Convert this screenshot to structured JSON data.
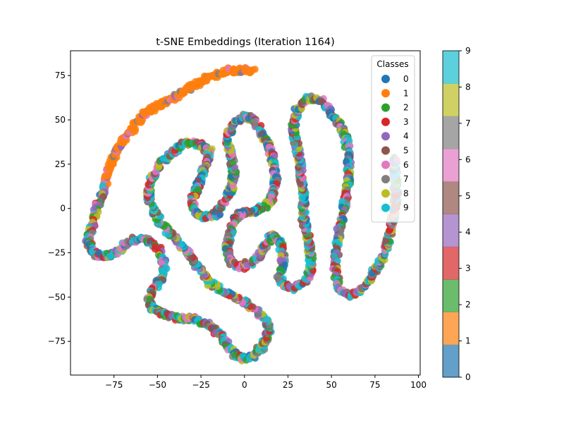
{
  "chart_data": {
    "type": "scatter",
    "title": "t-SNE Embeddings (Iteration 1164)",
    "xlabel": "",
    "ylabel": "",
    "xlim": [
      -100,
      101
    ],
    "ylim": [
      -94,
      89
    ],
    "xticks": [
      -75,
      -50,
      -25,
      0,
      25,
      50,
      75,
      100
    ],
    "yticks": [
      -75,
      -50,
      -25,
      0,
      25,
      50,
      75
    ],
    "grid": false,
    "legend": {
      "title": "Classes",
      "placement": "top-right",
      "entries": [
        "0",
        "1",
        "2",
        "3",
        "4",
        "5",
        "6",
        "7",
        "8",
        "9"
      ]
    },
    "class_colors": [
      "#1f77b4",
      "#ff7f0e",
      "#2ca02c",
      "#d62728",
      "#9467bd",
      "#8c564b",
      "#e377c2",
      "#7f7f7f",
      "#bcbd22",
      "#17becf"
    ],
    "colorbar": {
      "range": [
        0,
        9
      ],
      "ticks": [
        0,
        1,
        2,
        3,
        4,
        5,
        6,
        7,
        8,
        9
      ],
      "alpha": 0.7
    },
    "curves": [
      {
        "description": "cluster of class 1 points",
        "dominant_class": 1,
        "path": [
          [
            -80,
            12
          ],
          [
            -78,
            22
          ],
          [
            -75,
            30
          ],
          [
            -70,
            38
          ],
          [
            -65,
            44
          ],
          [
            -60,
            50
          ],
          [
            -55,
            55
          ],
          [
            -50,
            58
          ],
          [
            -45,
            60
          ],
          [
            -40,
            63
          ],
          [
            -35,
            66
          ],
          [
            -30,
            69
          ],
          [
            -25,
            72
          ],
          [
            -20,
            74
          ],
          [
            -15,
            76
          ],
          [
            -10,
            78
          ],
          [
            -5,
            78
          ],
          [
            0,
            78
          ],
          [
            5,
            77
          ]
        ]
      },
      {
        "description": "main mixed-class curve",
        "dominant_class": null,
        "path": [
          [
            -80,
            12
          ],
          [
            -84,
            2
          ],
          [
            -87,
            -8
          ],
          [
            -90,
            -18
          ],
          [
            -87,
            -25
          ],
          [
            -80,
            -27
          ],
          [
            -74,
            -25
          ],
          [
            -68,
            -20
          ],
          [
            -62,
            -17
          ],
          [
            -55,
            -18
          ],
          [
            -50,
            -22
          ],
          [
            -47,
            -28
          ],
          [
            -46,
            -36
          ],
          [
            -50,
            -43
          ],
          [
            -55,
            -50
          ],
          [
            -53,
            -57
          ],
          [
            -45,
            -60
          ],
          [
            -38,
            -62
          ],
          [
            -30,
            -62
          ],
          [
            -22,
            -65
          ],
          [
            -15,
            -70
          ],
          [
            -10,
            -77
          ],
          [
            -5,
            -83
          ],
          [
            0,
            -85
          ],
          [
            5,
            -83
          ],
          [
            10,
            -78
          ],
          [
            14,
            -70
          ],
          [
            12,
            -62
          ],
          [
            6,
            -57
          ],
          [
            -2,
            -52
          ],
          [
            -12,
            -47
          ],
          [
            -20,
            -42
          ],
          [
            -25,
            -35
          ],
          [
            -30,
            -28
          ],
          [
            -36,
            -21
          ],
          [
            -43,
            -14
          ],
          [
            -48,
            -8
          ],
          [
            -52,
            -2
          ],
          [
            -55,
            5
          ],
          [
            -55,
            12
          ],
          [
            -52,
            20
          ],
          [
            -47,
            27
          ],
          [
            -40,
            33
          ],
          [
            -33,
            37
          ],
          [
            -25,
            36
          ],
          [
            -20,
            32
          ],
          [
            -22,
            25
          ],
          [
            -25,
            18
          ],
          [
            -28,
            10
          ],
          [
            -30,
            3
          ],
          [
            -27,
            -3
          ],
          [
            -22,
            -5
          ],
          [
            -16,
            -3
          ],
          [
            -12,
            3
          ],
          [
            -8,
            10
          ],
          [
            -6,
            20
          ],
          [
            -8,
            30
          ],
          [
            -10,
            40
          ],
          [
            -6,
            48
          ],
          [
            0,
            52
          ],
          [
            6,
            50
          ],
          [
            10,
            42
          ],
          [
            14,
            35
          ],
          [
            17,
            25
          ],
          [
            18,
            15
          ],
          [
            15,
            5
          ],
          [
            10,
            0
          ],
          [
            4,
            -2
          ],
          [
            0,
            -2
          ],
          [
            -5,
            -5
          ],
          [
            -8,
            -12
          ],
          [
            -10,
            -22
          ],
          [
            -8,
            -30
          ],
          [
            -2,
            -33
          ],
          [
            5,
            -30
          ],
          [
            10,
            -25
          ],
          [
            12,
            -20
          ],
          [
            16,
            -15
          ],
          [
            20,
            -18
          ],
          [
            22,
            -25
          ],
          [
            22,
            -32
          ],
          [
            20,
            -38
          ],
          [
            22,
            -42
          ],
          [
            28,
            -45
          ],
          [
            35,
            -42
          ],
          [
            38,
            -35
          ],
          [
            38,
            -25
          ],
          [
            36,
            -15
          ],
          [
            34,
            -5
          ],
          [
            34,
            5
          ],
          [
            33,
            15
          ],
          [
            32,
            25
          ],
          [
            30,
            35
          ],
          [
            28,
            45
          ],
          [
            30,
            55
          ],
          [
            35,
            62
          ],
          [
            42,
            62
          ],
          [
            48,
            57
          ],
          [
            53,
            50
          ],
          [
            58,
            42
          ],
          [
            60,
            30
          ],
          [
            60,
            18
          ],
          [
            58,
            5
          ],
          [
            56,
            -5
          ],
          [
            54,
            -15
          ],
          [
            53,
            -25
          ],
          [
            52,
            -35
          ],
          [
            54,
            -45
          ],
          [
            60,
            -49
          ],
          [
            66,
            -47
          ],
          [
            72,
            -40
          ],
          [
            78,
            -30
          ],
          [
            82,
            -20
          ],
          [
            85,
            -8
          ],
          [
            87,
            5
          ],
          [
            87,
            15
          ],
          [
            86,
            25
          ],
          [
            87,
            28
          ]
        ]
      }
    ]
  }
}
